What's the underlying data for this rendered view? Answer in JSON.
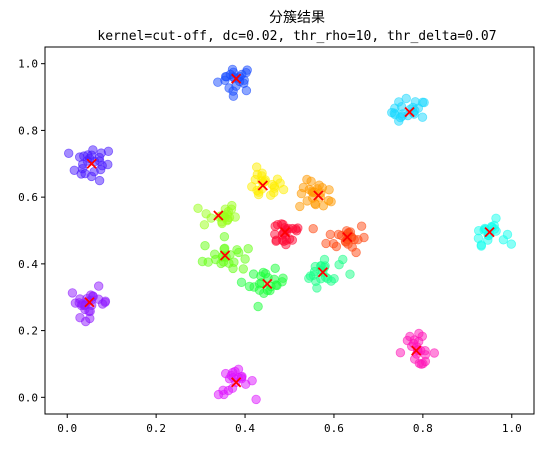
{
  "chart_data": {
    "type": "scatter",
    "title": "分簇结果",
    "subtitle": "kernel=cut-off, dc=0.02, thr_rho=10, thr_delta=0.07",
    "xlabel": "",
    "ylabel": "",
    "xlim": [
      -0.05,
      1.05
    ],
    "ylim": [
      -0.05,
      1.05
    ],
    "xticks": [
      0.0,
      0.2,
      0.4,
      0.6,
      0.8,
      1.0
    ],
    "xtick_labels": [
      "0.0",
      "0.2",
      "0.4",
      "0.6",
      "0.8",
      "1.0"
    ],
    "yticks": [
      0.0,
      0.2,
      0.4,
      0.6,
      0.8,
      1.0
    ],
    "ytick_labels": [
      "0.0",
      "0.2",
      "0.4",
      "0.6",
      "0.8",
      "1.0"
    ],
    "grid": false,
    "legend": "none",
    "point_alpha": 0.5,
    "center_marker": "x",
    "center_color": "#ff0000",
    "clusters": [
      {
        "center": [
          0.38,
          0.955
        ],
        "spread": 0.02,
        "count": 22,
        "color": "#1a4dff"
      },
      {
        "center": [
          0.77,
          0.855
        ],
        "spread": 0.02,
        "count": 22,
        "color": "#1ad8ff"
      },
      {
        "center": [
          0.055,
          0.7
        ],
        "spread": 0.025,
        "count": 24,
        "color": "#4a1aff"
      },
      {
        "center": [
          0.44,
          0.635
        ],
        "spread": 0.022,
        "count": 22,
        "color": "#ffee00"
      },
      {
        "center": [
          0.565,
          0.605
        ],
        "spread": 0.022,
        "count": 22,
        "color": "#ff9900"
      },
      {
        "center": [
          0.34,
          0.545
        ],
        "spread": 0.02,
        "count": 20,
        "color": "#99ff1a"
      },
      {
        "center": [
          0.49,
          0.495
        ],
        "spread": 0.022,
        "count": 24,
        "color": "#ff0a35"
      },
      {
        "center": [
          0.63,
          0.48
        ],
        "spread": 0.022,
        "count": 24,
        "color": "#ff4a14"
      },
      {
        "center": [
          0.95,
          0.495
        ],
        "spread": 0.018,
        "count": 20,
        "color": "#14ffee"
      },
      {
        "center": [
          0.355,
          0.425
        ],
        "spread": 0.025,
        "count": 22,
        "color": "#66ff14"
      },
      {
        "center": [
          0.575,
          0.375
        ],
        "spread": 0.022,
        "count": 22,
        "color": "#1aff88"
      },
      {
        "center": [
          0.45,
          0.34
        ],
        "spread": 0.02,
        "count": 22,
        "color": "#1aff3a"
      },
      {
        "center": [
          0.05,
          0.285
        ],
        "spread": 0.022,
        "count": 26,
        "color": "#8f1aff"
      },
      {
        "center": [
          0.785,
          0.14
        ],
        "spread": 0.022,
        "count": 22,
        "color": "#ff14b8"
      },
      {
        "center": [
          0.38,
          0.045
        ],
        "spread": 0.02,
        "count": 20,
        "color": "#dd14ff"
      }
    ]
  }
}
